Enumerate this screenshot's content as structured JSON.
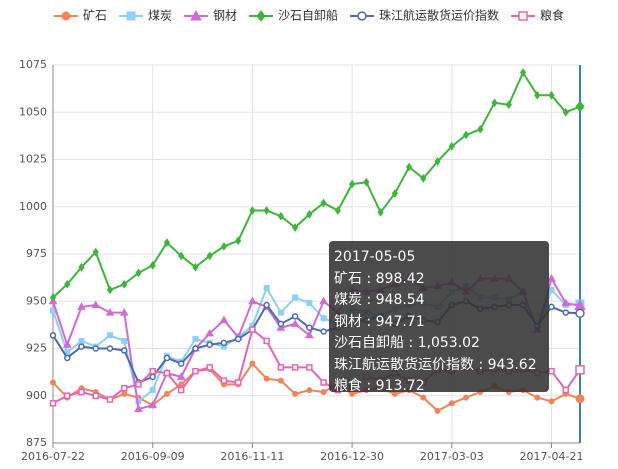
{
  "chart_data": {
    "type": "line",
    "categories": [
      "2016-07-22",
      null,
      null,
      null,
      null,
      null,
      null,
      "2016-09-09",
      null,
      null,
      null,
      null,
      null,
      null,
      "2016-11-11",
      null,
      null,
      null,
      null,
      null,
      null,
      "2016-12-30",
      null,
      null,
      null,
      null,
      null,
      null,
      "2017-03-03",
      null,
      null,
      null,
      null,
      null,
      null,
      "2017-04-21",
      null,
      null
    ],
    "ylim": [
      875,
      1075
    ],
    "yticks": [
      875,
      900,
      925,
      950,
      975,
      1000,
      1025,
      1050,
      1075
    ],
    "grid": true,
    "series": [
      {
        "name": "矿石",
        "color": "#f0845a",
        "symbol": "circle",
        "values": [
          907,
          899,
          904,
          902,
          898,
          901,
          899,
          895,
          901,
          906,
          913,
          914,
          906,
          906,
          917,
          909,
          908,
          901,
          903,
          902,
          906,
          901,
          903,
          904,
          901,
          903,
          899,
          892,
          896,
          899,
          902,
          905,
          902,
          903,
          899,
          897,
          901,
          898.42
        ]
      },
      {
        "name": "煤炭",
        "color": "#8ecff5",
        "symbol": "rect",
        "values": [
          945,
          923,
          929,
          926,
          932,
          929,
          897,
          903,
          921,
          918,
          930,
          928,
          926,
          931,
          937,
          957,
          944,
          952,
          949,
          941,
          938,
          946,
          944,
          942,
          946,
          948,
          949,
          947,
          955,
          958,
          952,
          952,
          951,
          955,
          935,
          956,
          948,
          948.54
        ]
      },
      {
        "name": "钢材",
        "color": "#d16ad4",
        "symbol": "triangle",
        "values": [
          950,
          927,
          947,
          948,
          944,
          944,
          893,
          895,
          912,
          910,
          925,
          933,
          940,
          931,
          950,
          947,
          936,
          938,
          932,
          950,
          944,
          956,
          955,
          956,
          959,
          962,
          957,
          958,
          960,
          955,
          962,
          962,
          962,
          955,
          935,
          962,
          949,
          947.71
        ]
      },
      {
        "name": "沙石自卸船",
        "color": "#3db63b",
        "symbol": "diamond",
        "values": [
          952,
          959,
          968,
          976,
          956,
          959,
          965,
          969,
          981,
          974,
          968,
          974,
          979,
          982,
          998,
          998,
          995,
          989,
          996,
          1002,
          998,
          1012,
          1013,
          997,
          1007,
          1021,
          1015,
          1024,
          1032,
          1038,
          1041,
          1055,
          1054,
          1071,
          1059,
          1059,
          1050,
          1053.02
        ]
      },
      {
        "name": "珠江航运散货运价指数",
        "color": "#4b6cae",
        "symbol": "emptyCircle",
        "values": [
          932,
          920,
          926,
          925,
          925,
          924,
          907,
          910,
          920,
          917,
          925,
          927,
          928,
          930,
          935,
          948,
          938,
          942,
          936,
          934,
          936,
          939,
          940,
          942,
          938,
          942,
          940,
          939,
          948,
          950,
          946,
          947,
          948,
          948,
          937,
          947,
          944,
          943.62
        ]
      },
      {
        "name": "粮食",
        "color": "#e665b2",
        "symbol": "emptyRect",
        "values": [
          896,
          900,
          902,
          900,
          898,
          904,
          906,
          913,
          912,
          903,
          913,
          915,
          908,
          907,
          935,
          929,
          915,
          915,
          915,
          907,
          903,
          904,
          910,
          908,
          912,
          908,
          907,
          914,
          913,
          915,
          913,
          914,
          913,
          914,
          912,
          913,
          903,
          913.72
        ]
      }
    ],
    "tooltip": {
      "title": "2017-05-05",
      "value_labels": [
        "898.42",
        "948.54",
        "947.71",
        "1,053.02",
        "943.62",
        "913.72"
      ]
    }
  }
}
